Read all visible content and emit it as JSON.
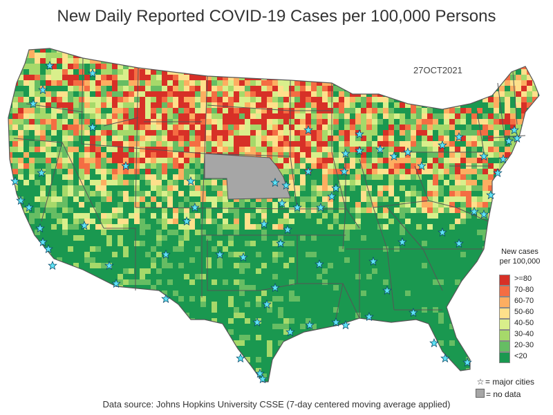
{
  "title": "New Daily Reported COVID-19 Cases per 100,000 Persons",
  "date": "27OCT2021",
  "legend": {
    "title_line1": "New cases",
    "title_line2": "per 100,000",
    "items": [
      {
        "label": ">=80",
        "color": "#d73027"
      },
      {
        "label": "70-80",
        "color": "#f46d43"
      },
      {
        "label": "60-70",
        "color": "#fdae61"
      },
      {
        "label": "50-60",
        "color": "#fee08b"
      },
      {
        "label": "40-50",
        "color": "#d9ef8b"
      },
      {
        "label": "30-40",
        "color": "#a6d96a"
      },
      {
        "label": "20-30",
        "color": "#66bd63"
      },
      {
        "label": "<20",
        "color": "#1a9850"
      }
    ]
  },
  "major_cities_label": "= major cities",
  "no_data_label": "= no data",
  "no_data_color": "#a6a6a6",
  "state_line_color": "#555555",
  "source": "Data source: Johns Hopkins University CSSE (7-day centered moving average applied)"
}
